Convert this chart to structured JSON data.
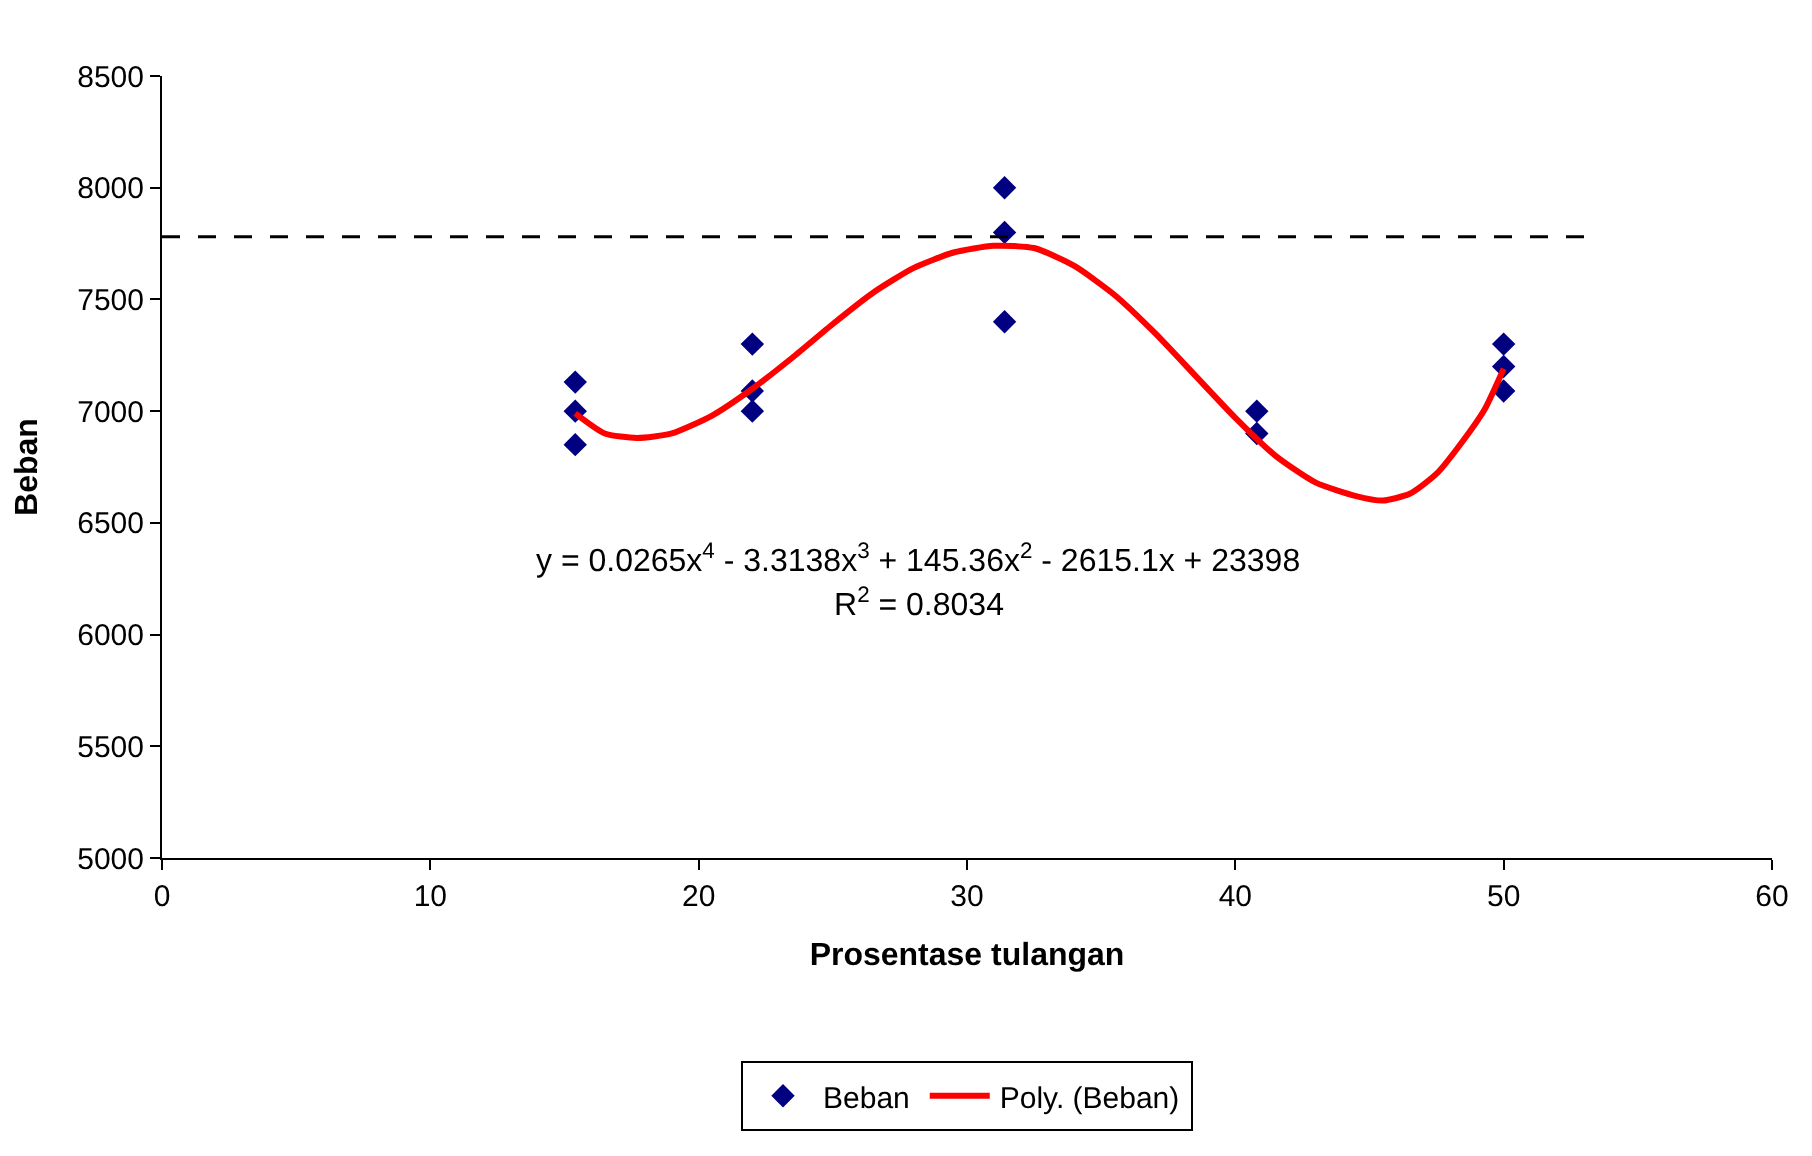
{
  "chart_data": {
    "type": "scatter",
    "xlabel": "Prosentase tulangan",
    "ylabel": "Beban",
    "xlim": [
      0,
      60
    ],
    "xticks": [
      0,
      10,
      20,
      30,
      40,
      50,
      60
    ],
    "ylim": [
      5000,
      8500
    ],
    "yticks": [
      5000,
      5500,
      6000,
      6500,
      7000,
      7500,
      8000,
      8500
    ],
    "legend": "bottom",
    "series": [
      {
        "name": "Beban",
        "marker": "diamond",
        "color": "#000080",
        "x": [
          15.4,
          15.4,
          15.4,
          22,
          22,
          22,
          31.4,
          31.4,
          31.4,
          40.8,
          40.8,
          50,
          50,
          50
        ],
        "values": [
          7130,
          7000,
          6850,
          7300,
          7090,
          7000,
          8000,
          7800,
          7400,
          7000,
          6900,
          7300,
          7200,
          7090
        ]
      },
      {
        "name": "Poly. (Beban)",
        "type": "line",
        "color": "#ff0000",
        "line_style": "solid",
        "marker": "none",
        "x": [
          15.4,
          16.5,
          17.7,
          19,
          20.5,
          22,
          23.5,
          25,
          26.5,
          28,
          29.5,
          31,
          32.5,
          34,
          35.5,
          37,
          38.5,
          40,
          41.5,
          43,
          44.5,
          45.5,
          46.5,
          47.5,
          48.5,
          49.3,
          50
        ],
        "values": [
          6990,
          6900,
          6880,
          6900,
          6980,
          7100,
          7240,
          7390,
          7530,
          7640,
          7710,
          7740,
          7730,
          7650,
          7520,
          7350,
          7160,
          6970,
          6800,
          6680,
          6620,
          6600,
          6630,
          6720,
          6870,
          7010,
          7190
        ]
      },
      {
        "type": "line",
        "color": "#000000",
        "line_style": "dashed",
        "marker": "none",
        "x": [
          0,
          53
        ],
        "values": [
          7780,
          7780
        ]
      }
    ],
    "annotations": [
      "y = 0.0265x$^{4}$ - 3.3138x$^{3}$ + 145.36x$^{2}$ - 2615.1x + 23398",
      "R$^{2}$ = 0.8034"
    ]
  }
}
